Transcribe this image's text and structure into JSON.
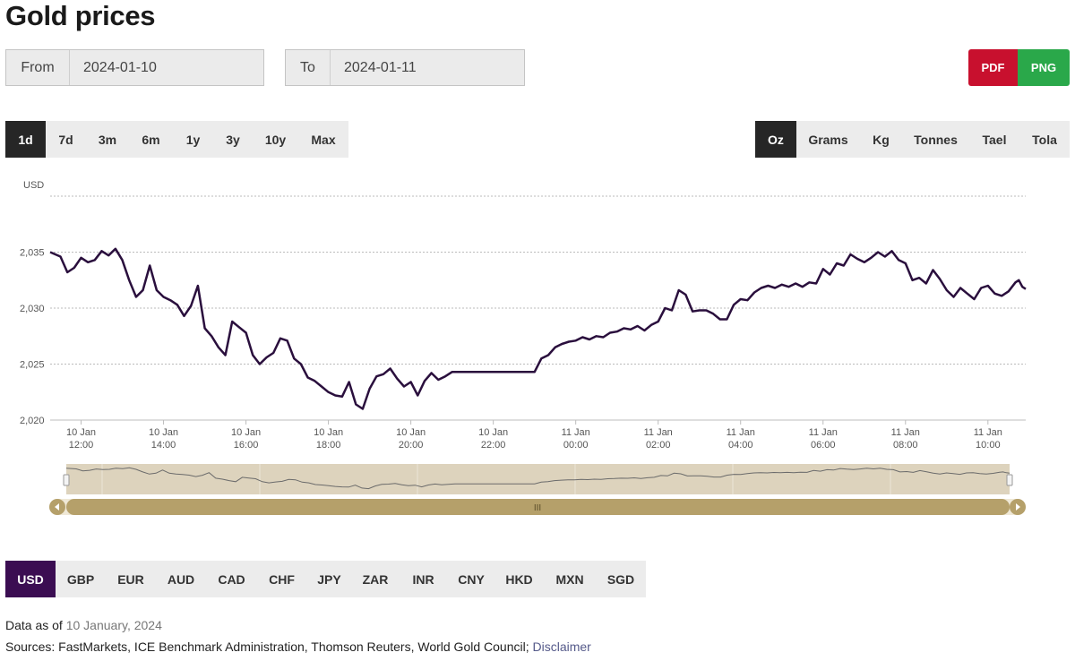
{
  "page_title": "Gold prices",
  "date_range": {
    "from_label": "From",
    "from_value": "2024-01-10",
    "to_label": "To",
    "to_value": "2024-01-11"
  },
  "export": {
    "pdf_label": "PDF",
    "png_label": "PNG"
  },
  "range_options": [
    "1d",
    "7d",
    "3m",
    "6m",
    "1y",
    "3y",
    "10y",
    "Max"
  ],
  "range_selected": "1d",
  "unit_options": [
    "Oz",
    "Grams",
    "Kg",
    "Tonnes",
    "Tael",
    "Tola"
  ],
  "unit_selected": "Oz",
  "currency_options": [
    "USD",
    "GBP",
    "EUR",
    "AUD",
    "CAD",
    "CHF",
    "JPY",
    "ZAR",
    "INR",
    "CNY",
    "HKD",
    "MXN",
    "SGD"
  ],
  "currency_selected": "USD",
  "colors": {
    "line": "#2a0f3d",
    "navigator_bg": "#ddd3bd",
    "scrollbar": "#b5a06a"
  },
  "scrollbar_grip": "III",
  "chart_data": {
    "type": "line",
    "ylabel": "USD",
    "ylim": [
      2020,
      2040
    ],
    "yticks": [
      2020,
      2025,
      2030,
      2035
    ],
    "ytick_labels": [
      "2,020",
      "2,025",
      "2,030",
      "2,035"
    ],
    "xlim": [
      "2024-01-10 11:15",
      "2024-01-11 10:55"
    ],
    "xtick_labels": [
      [
        "10 Jan",
        "12:00"
      ],
      [
        "10 Jan",
        "14:00"
      ],
      [
        "10 Jan",
        "16:00"
      ],
      [
        "10 Jan",
        "18:00"
      ],
      [
        "10 Jan",
        "20:00"
      ],
      [
        "10 Jan",
        "22:00"
      ],
      [
        "11 Jan",
        "00:00"
      ],
      [
        "11 Jan",
        "02:00"
      ],
      [
        "11 Jan",
        "04:00"
      ],
      [
        "11 Jan",
        "06:00"
      ],
      [
        "11 Jan",
        "08:00"
      ],
      [
        "11 Jan",
        "10:00"
      ]
    ],
    "grid": "horizontal",
    "legend": "none",
    "series": [
      {
        "points": [
          [
            "2024-01-10 11:15",
            2035.0
          ],
          [
            "2024-01-10 11:30",
            2034.6
          ],
          [
            "2024-01-10 11:40",
            2033.2
          ],
          [
            "2024-01-10 11:50",
            2033.6
          ],
          [
            "2024-01-10 12:00",
            2034.5
          ],
          [
            "2024-01-10 12:10",
            2034.1
          ],
          [
            "2024-01-10 12:20",
            2034.3
          ],
          [
            "2024-01-10 12:30",
            2035.1
          ],
          [
            "2024-01-10 12:40",
            2034.7
          ],
          [
            "2024-01-10 12:50",
            2035.3
          ],
          [
            "2024-01-10 13:00",
            2034.3
          ],
          [
            "2024-01-10 13:10",
            2032.5
          ],
          [
            "2024-01-10 13:20",
            2031.0
          ],
          [
            "2024-01-10 13:30",
            2031.6
          ],
          [
            "2024-01-10 13:40",
            2033.8
          ],
          [
            "2024-01-10 13:50",
            2031.6
          ],
          [
            "2024-01-10 14:00",
            2031.0
          ],
          [
            "2024-01-10 14:10",
            2030.7
          ],
          [
            "2024-01-10 14:20",
            2030.3
          ],
          [
            "2024-01-10 14:30",
            2029.3
          ],
          [
            "2024-01-10 14:40",
            2030.2
          ],
          [
            "2024-01-10 14:50",
            2032.0
          ],
          [
            "2024-01-10 15:00",
            2028.2
          ],
          [
            "2024-01-10 15:10",
            2027.5
          ],
          [
            "2024-01-10 15:20",
            2026.5
          ],
          [
            "2024-01-10 15:30",
            2025.8
          ],
          [
            "2024-01-10 15:40",
            2028.8
          ],
          [
            "2024-01-10 15:50",
            2028.3
          ],
          [
            "2024-01-10 16:00",
            2027.8
          ],
          [
            "2024-01-10 16:10",
            2025.8
          ],
          [
            "2024-01-10 16:20",
            2025.0
          ],
          [
            "2024-01-10 16:30",
            2025.6
          ],
          [
            "2024-01-10 16:40",
            2026.0
          ],
          [
            "2024-01-10 16:50",
            2027.3
          ],
          [
            "2024-01-10 17:00",
            2027.1
          ],
          [
            "2024-01-10 17:10",
            2025.5
          ],
          [
            "2024-01-10 17:20",
            2025.0
          ],
          [
            "2024-01-10 17:30",
            2023.8
          ],
          [
            "2024-01-10 17:40",
            2023.5
          ],
          [
            "2024-01-10 17:50",
            2023.0
          ],
          [
            "2024-01-10 18:00",
            2022.5
          ],
          [
            "2024-01-10 18:10",
            2022.2
          ],
          [
            "2024-01-10 18:20",
            2022.1
          ],
          [
            "2024-01-10 18:30",
            2023.4
          ],
          [
            "2024-01-10 18:40",
            2021.4
          ],
          [
            "2024-01-10 18:50",
            2021.0
          ],
          [
            "2024-01-10 19:00",
            2022.8
          ],
          [
            "2024-01-10 19:10",
            2023.9
          ],
          [
            "2024-01-10 19:20",
            2024.1
          ],
          [
            "2024-01-10 19:30",
            2024.6
          ],
          [
            "2024-01-10 19:40",
            2023.7
          ],
          [
            "2024-01-10 19:50",
            2023.0
          ],
          [
            "2024-01-10 20:00",
            2023.4
          ],
          [
            "2024-01-10 20:10",
            2022.2
          ],
          [
            "2024-01-10 20:20",
            2023.5
          ],
          [
            "2024-01-10 20:30",
            2024.2
          ],
          [
            "2024-01-10 20:40",
            2023.6
          ],
          [
            "2024-01-10 20:50",
            2023.9
          ],
          [
            "2024-01-10 21:00",
            2024.3
          ],
          [
            "2024-01-10 21:20",
            2024.3
          ],
          [
            "2024-01-10 21:40",
            2024.3
          ],
          [
            "2024-01-10 22:00",
            2024.3
          ],
          [
            "2024-01-10 22:20",
            2024.3
          ],
          [
            "2024-01-10 22:40",
            2024.3
          ],
          [
            "2024-01-10 23:00",
            2024.3
          ],
          [
            "2024-01-10 23:10",
            2025.5
          ],
          [
            "2024-01-10 23:20",
            2025.8
          ],
          [
            "2024-01-10 23:30",
            2026.5
          ],
          [
            "2024-01-10 23:40",
            2026.8
          ],
          [
            "2024-01-10 23:50",
            2027.0
          ],
          [
            "2024-01-11 00:00",
            2027.1
          ],
          [
            "2024-01-11 00:10",
            2027.4
          ],
          [
            "2024-01-11 00:20",
            2027.2
          ],
          [
            "2024-01-11 00:30",
            2027.5
          ],
          [
            "2024-01-11 00:40",
            2027.4
          ],
          [
            "2024-01-11 00:50",
            2027.8
          ],
          [
            "2024-01-11 01:00",
            2027.9
          ],
          [
            "2024-01-11 01:10",
            2028.2
          ],
          [
            "2024-01-11 01:20",
            2028.1
          ],
          [
            "2024-01-11 01:30",
            2028.4
          ],
          [
            "2024-01-11 01:40",
            2028.0
          ],
          [
            "2024-01-11 01:50",
            2028.5
          ],
          [
            "2024-01-11 02:00",
            2028.8
          ],
          [
            "2024-01-11 02:10",
            2030.0
          ],
          [
            "2024-01-11 02:20",
            2029.8
          ],
          [
            "2024-01-11 02:30",
            2031.6
          ],
          [
            "2024-01-11 02:40",
            2031.2
          ],
          [
            "2024-01-11 02:50",
            2029.7
          ],
          [
            "2024-01-11 03:00",
            2029.8
          ],
          [
            "2024-01-11 03:10",
            2029.8
          ],
          [
            "2024-01-11 03:20",
            2029.5
          ],
          [
            "2024-01-11 03:30",
            2029.0
          ],
          [
            "2024-01-11 03:40",
            2029.0
          ],
          [
            "2024-01-11 03:50",
            2030.3
          ],
          [
            "2024-01-11 04:00",
            2030.8
          ],
          [
            "2024-01-11 04:10",
            2030.7
          ],
          [
            "2024-01-11 04:20",
            2031.4
          ],
          [
            "2024-01-11 04:30",
            2031.8
          ],
          [
            "2024-01-11 04:40",
            2032.0
          ],
          [
            "2024-01-11 04:50",
            2031.8
          ],
          [
            "2024-01-11 05:00",
            2032.1
          ],
          [
            "2024-01-11 05:10",
            2031.9
          ],
          [
            "2024-01-11 05:20",
            2032.2
          ],
          [
            "2024-01-11 05:30",
            2031.9
          ],
          [
            "2024-01-11 05:40",
            2032.3
          ],
          [
            "2024-01-11 05:50",
            2032.2
          ],
          [
            "2024-01-11 06:00",
            2033.5
          ],
          [
            "2024-01-11 06:10",
            2033.0
          ],
          [
            "2024-01-11 06:20",
            2034.0
          ],
          [
            "2024-01-11 06:30",
            2033.8
          ],
          [
            "2024-01-11 06:40",
            2034.8
          ],
          [
            "2024-01-11 06:50",
            2034.4
          ],
          [
            "2024-01-11 07:00",
            2034.1
          ],
          [
            "2024-01-11 07:10",
            2034.5
          ],
          [
            "2024-01-11 07:20",
            2035.0
          ],
          [
            "2024-01-11 07:30",
            2034.6
          ],
          [
            "2024-01-11 07:40",
            2035.1
          ],
          [
            "2024-01-11 07:50",
            2034.3
          ],
          [
            "2024-01-11 08:00",
            2034.0
          ],
          [
            "2024-01-11 08:10",
            2032.5
          ],
          [
            "2024-01-11 08:20",
            2032.7
          ],
          [
            "2024-01-11 08:30",
            2032.2
          ],
          [
            "2024-01-11 08:40",
            2033.4
          ],
          [
            "2024-01-11 08:50",
            2032.6
          ],
          [
            "2024-01-11 09:00",
            2031.6
          ],
          [
            "2024-01-11 09:10",
            2031.0
          ],
          [
            "2024-01-11 09:20",
            2031.8
          ],
          [
            "2024-01-11 09:30",
            2031.3
          ],
          [
            "2024-01-11 09:40",
            2030.8
          ],
          [
            "2024-01-11 09:50",
            2031.8
          ],
          [
            "2024-01-11 10:00",
            2032.0
          ],
          [
            "2024-01-11 10:10",
            2031.3
          ],
          [
            "2024-01-11 10:20",
            2031.1
          ],
          [
            "2024-01-11 10:30",
            2031.5
          ],
          [
            "2024-01-11 10:40",
            2032.3
          ],
          [
            "2024-01-11 10:45",
            2032.5
          ],
          [
            "2024-01-11 10:50",
            2031.9
          ],
          [
            "2024-01-11 10:55",
            2031.7
          ]
        ]
      }
    ]
  },
  "footer": {
    "data_as_of_label": "Data as of",
    "data_as_of_value": "10 January, 2024",
    "sources_text": "Sources: FastMarkets, ICE Benchmark Administration, Thomson Reuters, World Gold Council;",
    "disclaimer_link": "Disclaimer"
  }
}
